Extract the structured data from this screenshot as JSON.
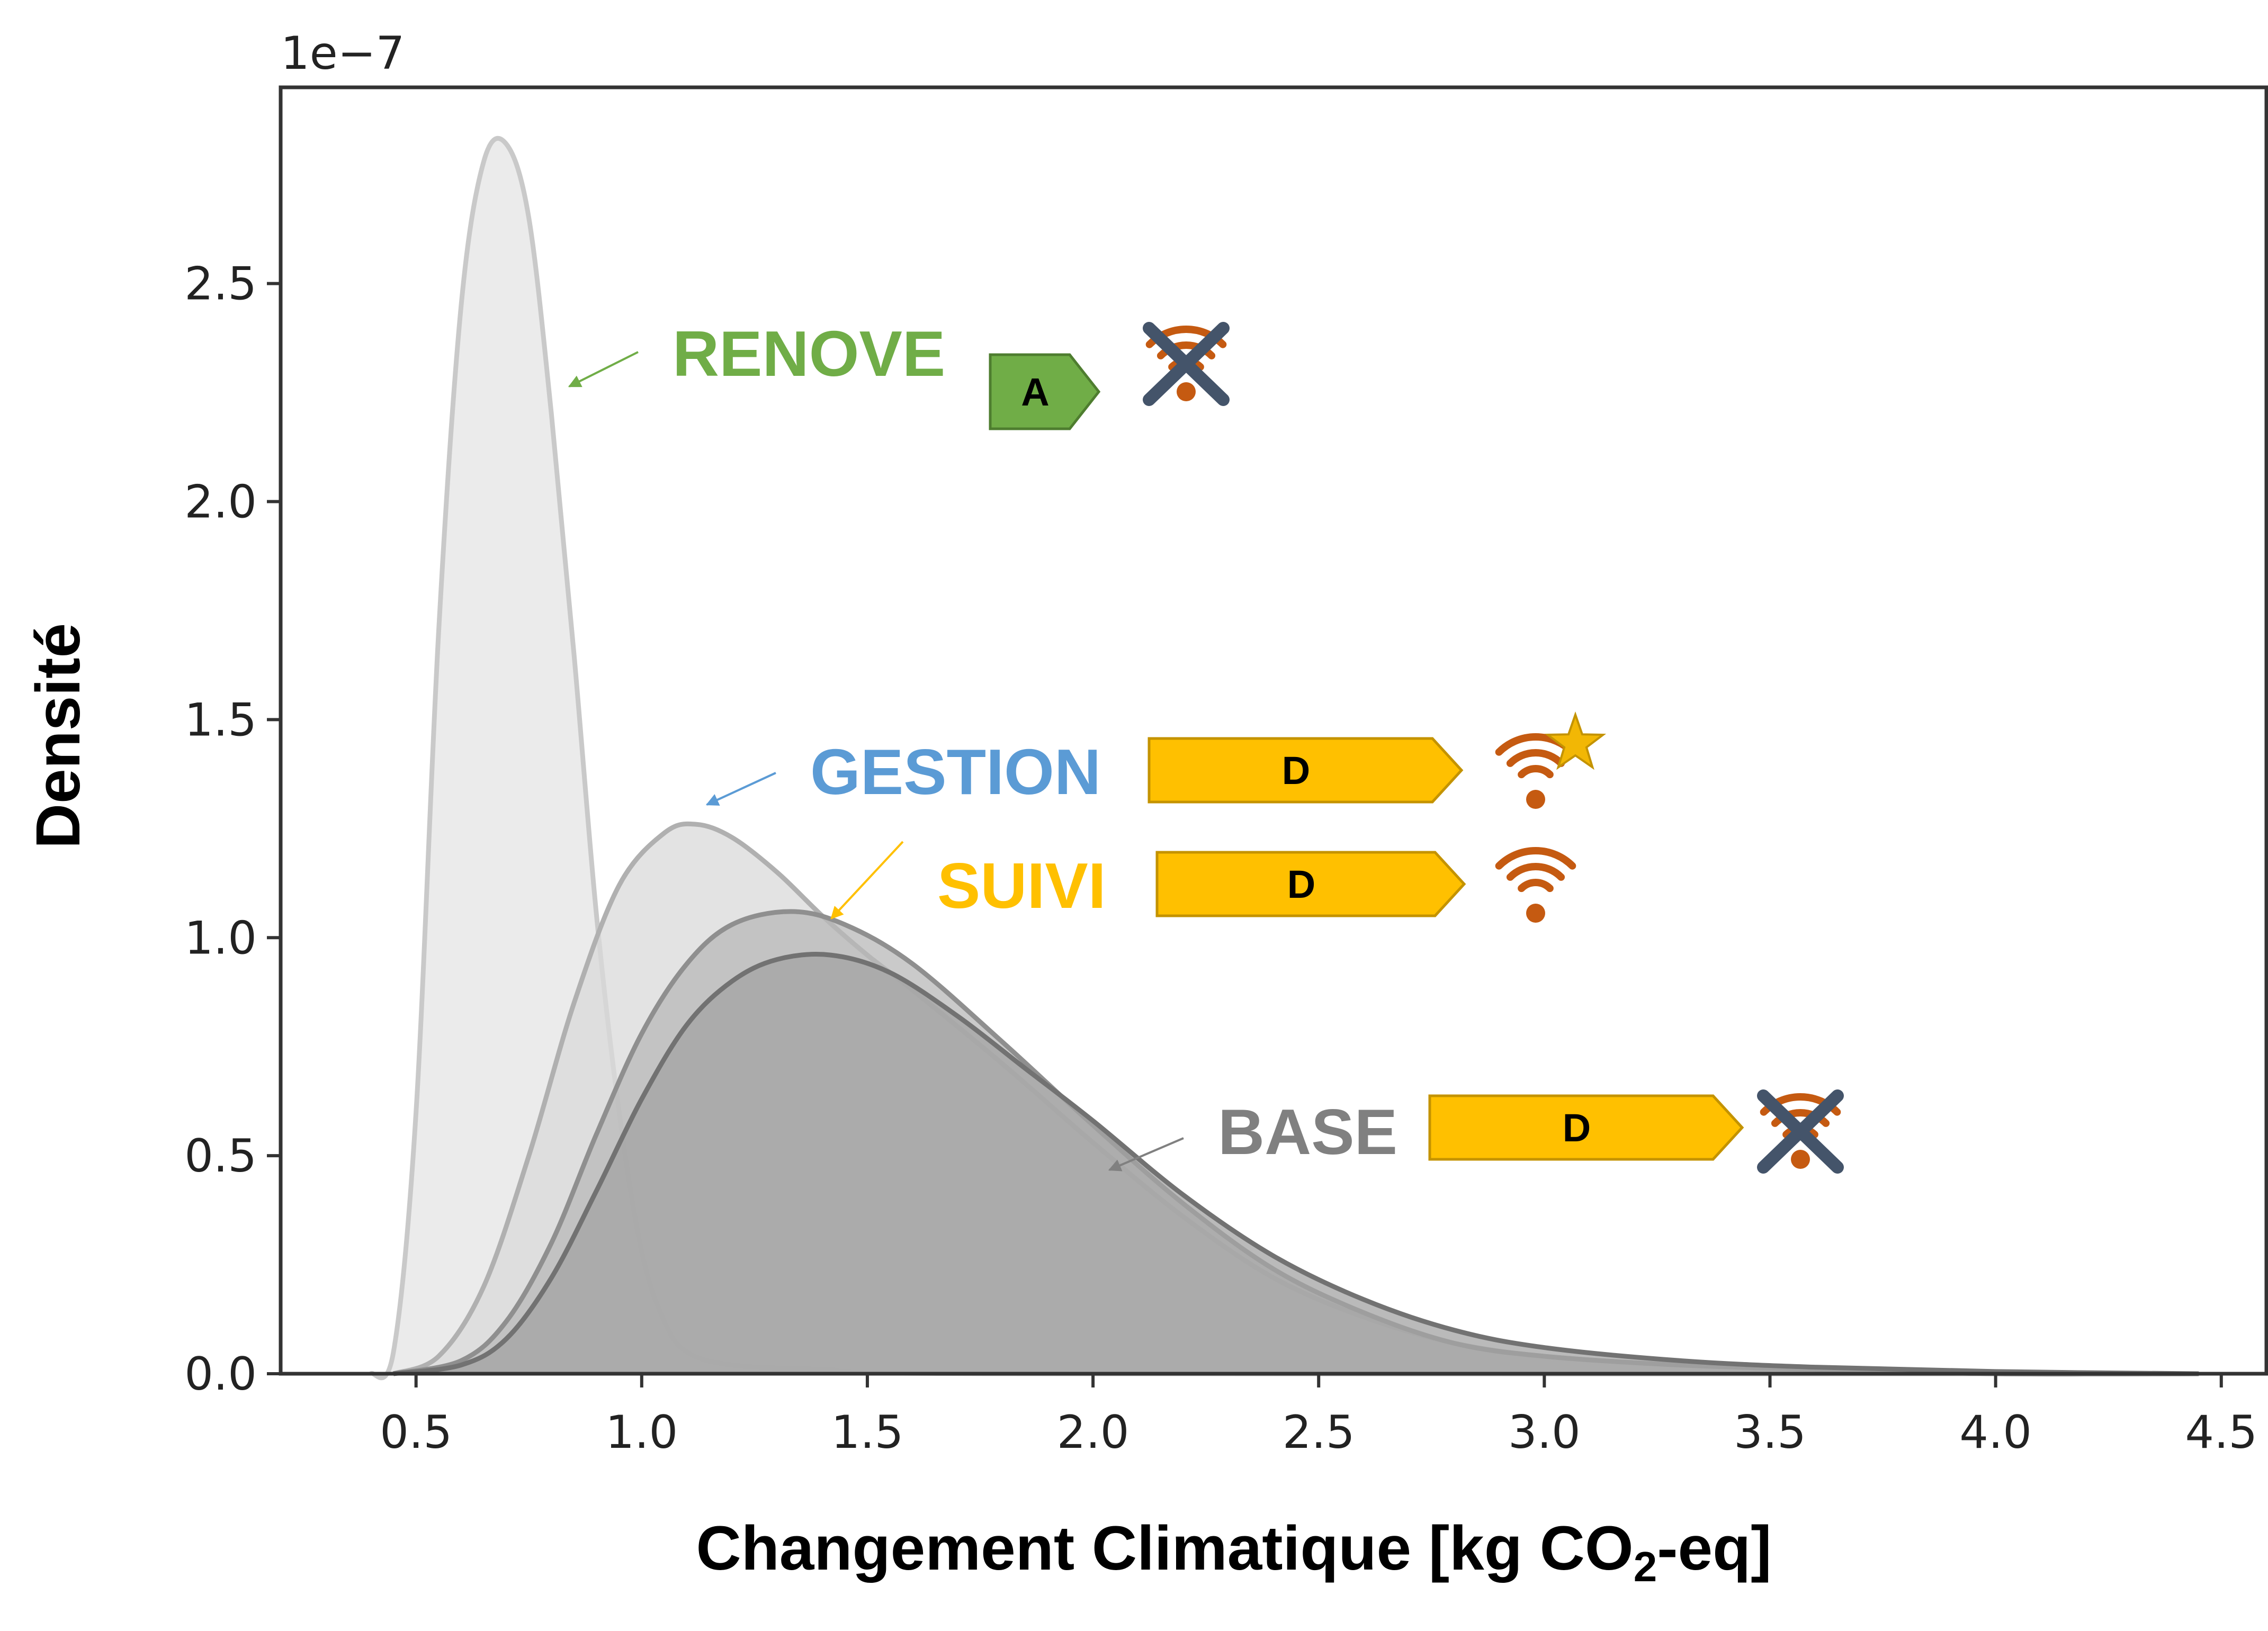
{
  "chart_data": {
    "type": "area",
    "title": "",
    "xlabel_main": "Changement Climatique [kg CO",
    "xlabel_sub": "2",
    "xlabel_tail": "-eq]",
    "ylabel": "Densité",
    "y_offset_label": "1e−7",
    "xlim": [
      0.2,
      4.6
    ],
    "ylim": [
      0.0,
      2.95
    ],
    "x_ticks": [
      0.5,
      1.0,
      1.5,
      2.0,
      2.5,
      3.0,
      3.5,
      4.0,
      4.5
    ],
    "x_tick_labels": [
      "0.5",
      "1.0",
      "1.5",
      "2.0",
      "2.5",
      "3.0",
      "3.5",
      "4.0",
      "4.5"
    ],
    "y_ticks": [
      0.0,
      0.5,
      1.0,
      1.5,
      2.0,
      2.5
    ],
    "y_tick_labels": [
      "0.0",
      "0.5",
      "1.0",
      "1.5",
      "2.0",
      "2.5"
    ],
    "grid": false,
    "series": [
      {
        "name": "RENOVE",
        "label_color": "#70AD47",
        "fill": "#e4e4e4",
        "stroke": "#c9c9c9",
        "x": [
          0.4,
          0.45,
          0.5,
          0.55,
          0.6,
          0.65,
          0.7,
          0.75,
          0.8,
          0.85,
          0.9,
          0.95,
          1.0,
          1.05,
          1.1,
          1.2,
          1.4,
          1.8,
          4.45
        ],
        "y": [
          0.0,
          0.05,
          0.6,
          1.7,
          2.45,
          2.78,
          2.82,
          2.65,
          2.2,
          1.65,
          1.05,
          0.6,
          0.28,
          0.12,
          0.05,
          0.02,
          0.01,
          0.0,
          0.0
        ],
        "badge": "A",
        "badge_color": "#70AD47",
        "badge_stroke": "#4E7D2F",
        "signal": "crossed"
      },
      {
        "name": "GESTION",
        "label_color": "#5B9BD5",
        "fill": "#d9d9d9",
        "stroke": "#b0b0b0",
        "x": [
          0.45,
          0.55,
          0.65,
          0.75,
          0.85,
          0.95,
          1.05,
          1.12,
          1.2,
          1.3,
          1.4,
          1.5,
          1.6,
          1.8,
          2.0,
          2.2,
          2.4,
          2.6,
          2.8,
          3.0,
          3.3,
          3.6,
          4.0,
          4.45
        ],
        "y": [
          0.0,
          0.04,
          0.2,
          0.5,
          0.85,
          1.12,
          1.24,
          1.26,
          1.23,
          1.15,
          1.05,
          0.96,
          0.88,
          0.71,
          0.53,
          0.36,
          0.22,
          0.13,
          0.07,
          0.04,
          0.02,
          0.01,
          0.0,
          0.0
        ],
        "badge": "D",
        "badge_color": "#FFC000",
        "badge_stroke": "#C49300",
        "signal": "star"
      },
      {
        "name": "SUIVI",
        "label_color": "#FFC000",
        "fill": "#b8b8b8",
        "stroke": "#8f8f8f",
        "x": [
          0.45,
          0.6,
          0.7,
          0.8,
          0.9,
          1.0,
          1.1,
          1.2,
          1.33,
          1.45,
          1.6,
          1.8,
          2.0,
          2.2,
          2.4,
          2.6,
          2.8,
          3.0,
          3.3,
          3.6,
          4.0,
          4.45
        ],
        "y": [
          0.0,
          0.03,
          0.12,
          0.3,
          0.55,
          0.78,
          0.94,
          1.03,
          1.06,
          1.03,
          0.94,
          0.76,
          0.57,
          0.39,
          0.24,
          0.14,
          0.07,
          0.04,
          0.02,
          0.01,
          0.0,
          0.0
        ],
        "badge": "D",
        "badge_color": "#FFC000",
        "badge_stroke": "#C49300",
        "signal": "plain"
      },
      {
        "name": "BASE",
        "label_color": "#808080",
        "fill": "#a3a3a3",
        "stroke": "#727272",
        "x": [
          0.45,
          0.6,
          0.7,
          0.8,
          0.9,
          1.0,
          1.1,
          1.2,
          1.3,
          1.42,
          1.55,
          1.7,
          1.85,
          2.0,
          2.2,
          2.4,
          2.6,
          2.8,
          3.0,
          3.3,
          3.6,
          4.0,
          4.45
        ],
        "y": [
          0.0,
          0.02,
          0.08,
          0.22,
          0.42,
          0.63,
          0.8,
          0.9,
          0.95,
          0.96,
          0.92,
          0.82,
          0.7,
          0.58,
          0.41,
          0.27,
          0.17,
          0.1,
          0.06,
          0.03,
          0.015,
          0.005,
          0.0
        ],
        "badge": "D",
        "badge_color": "#FFC000",
        "badge_stroke": "#C49300",
        "signal": "crossed"
      }
    ]
  },
  "icon_colors": {
    "signal": "#C55A11",
    "cross": "#44546A",
    "star": "#F2B705"
  }
}
